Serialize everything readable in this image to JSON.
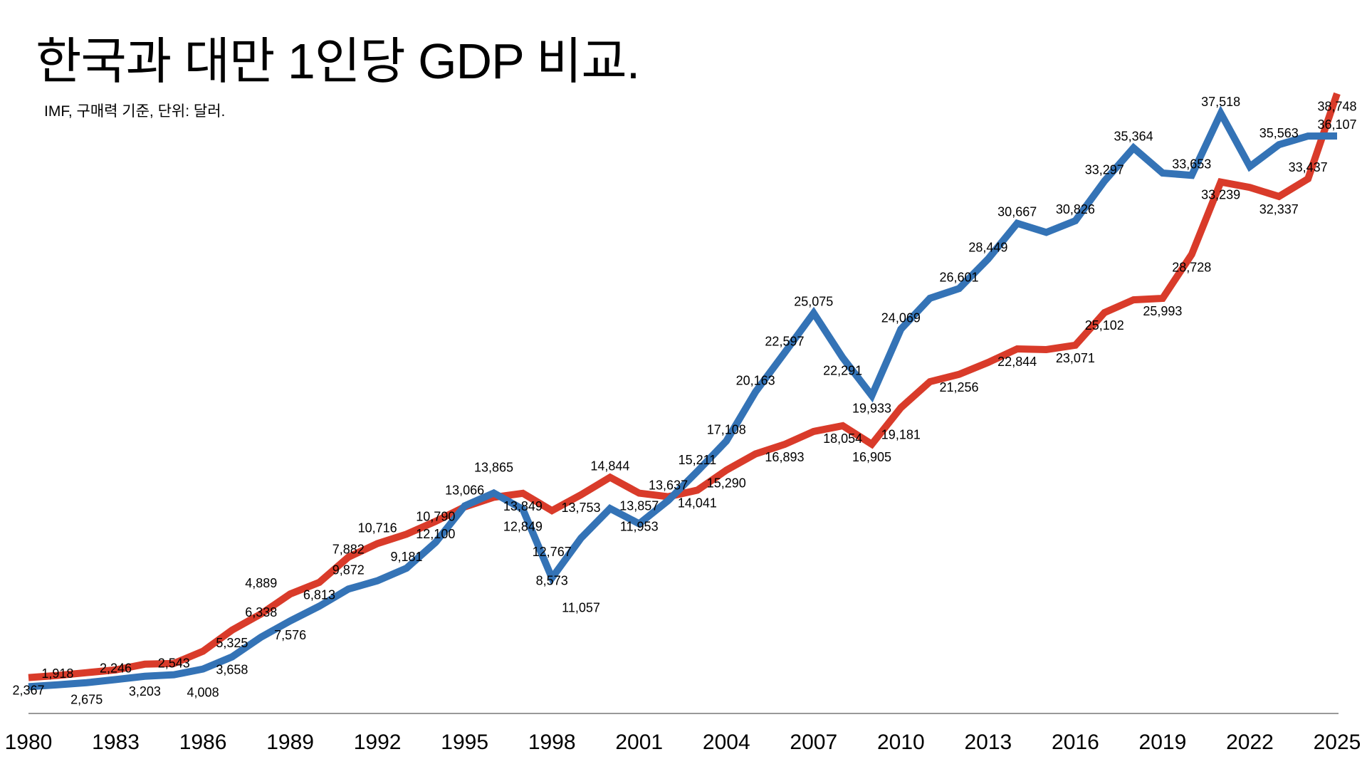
{
  "chart_data": {
    "type": "line",
    "title": "한국과 대만 1인당 GDP 비교.",
    "subtitle": "IMF, 구매력 기준, 단위: 달러.",
    "xlabel": "",
    "ylabel": "",
    "x": [
      1980,
      1981,
      1982,
      1983,
      1984,
      1985,
      1986,
      1987,
      1988,
      1989,
      1990,
      1991,
      1992,
      1993,
      1994,
      1995,
      1996,
      1997,
      1998,
      1999,
      2000,
      2001,
      2002,
      2003,
      2004,
      2005,
      2006,
      2007,
      2008,
      2009,
      2010,
      2011,
      2012,
      2013,
      2014,
      2015,
      2016,
      2017,
      2018,
      2019,
      2020,
      2021,
      2022,
      2023,
      2024,
      2025
    ],
    "x_ticks": [
      1980,
      1983,
      1986,
      1989,
      1992,
      1995,
      1998,
      2001,
      2004,
      2007,
      2010,
      2013,
      2016,
      2019,
      2022,
      2025
    ],
    "ylim": [
      0,
      44000
    ],
    "y_axis_visible": false,
    "grid": false,
    "legend": "none",
    "series": [
      {
        "color": "#D93B2A",
        "values": [
          2367,
          2500,
          2675,
          2850,
          3203,
          3250,
          4008,
          5325,
          6338,
          7576,
          8300,
          9872,
          10716,
          11300,
          12100,
          13000,
          13600,
          13849,
          12767,
          13753,
          14844,
          13857,
          13637,
          14041,
          15290,
          16300,
          16893,
          17700,
          18054,
          16905,
          19181,
          20800,
          21256,
          22000,
          22844,
          22800,
          23071,
          25102,
          25900,
          25993,
          28728,
          33239,
          32900,
          32337,
          33437,
          38748
        ]
      },
      {
        "color": "#3473B6",
        "values": [
          1800,
          1918,
          2050,
          2246,
          2450,
          2543,
          2900,
          3658,
          4889,
          5900,
          6813,
          7882,
          8400,
          9181,
          10790,
          13066,
          13865,
          12849,
          8573,
          11057,
          12900,
          11953,
          13400,
          15211,
          17108,
          20163,
          22597,
          25075,
          22291,
          19933,
          24069,
          26000,
          26601,
          28449,
          30667,
          30100,
          30826,
          33297,
          35364,
          33800,
          33653,
          37518,
          34200,
          35563,
          36100,
          36107
        ]
      }
    ],
    "data_labels": [
      {
        "series": 0,
        "year": 1980,
        "text": "2,367",
        "pos": "below"
      },
      {
        "series": 1,
        "year": 1981,
        "text": "1,918",
        "pos": "above"
      },
      {
        "series": 0,
        "year": 1982,
        "text": "2,675",
        "pos": "below"
      },
      {
        "series": 1,
        "year": 1983,
        "text": "2,246",
        "pos": "above"
      },
      {
        "series": 0,
        "year": 1984,
        "text": "3,203",
        "pos": "below"
      },
      {
        "series": 1,
        "year": 1985,
        "text": "2,543",
        "pos": "above"
      },
      {
        "series": 0,
        "year": 1986,
        "text": "4,008",
        "pos": "below"
      },
      {
        "series": 0,
        "year": 1987,
        "text": "5,325",
        "pos": "below"
      },
      {
        "series": 1,
        "year": 1987,
        "text": "3,658",
        "pos": "below"
      },
      {
        "series": 0,
        "year": 1988,
        "text": "6,338",
        "pos": "below"
      },
      {
        "series": 1,
        "year": 1988,
        "text": "4,889",
        "pos": "above"
      },
      {
        "series": 0,
        "year": 1989,
        "text": "7,576",
        "pos": "below"
      },
      {
        "series": 1,
        "year": 1990,
        "text": "6,813",
        "pos": "above"
      },
      {
        "series": 0,
        "year": 1991,
        "text": "9,872",
        "pos": "below"
      },
      {
        "series": 1,
        "year": 1991,
        "text": "7,882",
        "pos": "above"
      },
      {
        "series": 0,
        "year": 1992,
        "text": "10,716",
        "pos": "below"
      },
      {
        "series": 1,
        "year": 1993,
        "text": "9,181",
        "pos": "above"
      },
      {
        "series": 0,
        "year": 1994,
        "text": "12,100",
        "pos": "below"
      },
      {
        "series": 1,
        "year": 1994,
        "text": "10,790",
        "pos": "above"
      },
      {
        "series": 1,
        "year": 1995,
        "text": "13,066",
        "pos": "below"
      },
      {
        "series": 1,
        "year": 1996,
        "text": "13,865",
        "pos": "above"
      },
      {
        "series": 0,
        "year": 1997,
        "text": "13,849",
        "pos": "below"
      },
      {
        "series": 1,
        "year": 1997,
        "text": "12,849",
        "pos": "above"
      },
      {
        "series": 0,
        "year": 1998,
        "text": "12,767",
        "pos": "below"
      },
      {
        "series": 1,
        "year": 1998,
        "text": "8,573",
        "pos": "above"
      },
      {
        "series": 0,
        "year": 1999,
        "text": "13,753",
        "pos": "below"
      },
      {
        "series": 1,
        "year": 1999,
        "text": "11,057",
        "pos": "below"
      },
      {
        "series": 0,
        "year": 2000,
        "text": "14,844",
        "pos": "above"
      },
      {
        "series": 0,
        "year": 2001,
        "text": "13,857",
        "pos": "below"
      },
      {
        "series": 1,
        "year": 2001,
        "text": "11,953",
        "pos": "above"
      },
      {
        "series": 0,
        "year": 2002,
        "text": "13,637",
        "pos": "above"
      },
      {
        "series": 0,
        "year": 2003,
        "text": "14,041",
        "pos": "below"
      },
      {
        "series": 1,
        "year": 2003,
        "text": "15,211",
        "pos": "above"
      },
      {
        "series": 0,
        "year": 2004,
        "text": "15,290",
        "pos": "below"
      },
      {
        "series": 1,
        "year": 2004,
        "text": "17,108",
        "pos": "above"
      },
      {
        "series": 1,
        "year": 2005,
        "text": "20,163",
        "pos": "above"
      },
      {
        "series": 0,
        "year": 2006,
        "text": "16,893",
        "pos": "below"
      },
      {
        "series": 1,
        "year": 2006,
        "text": "22,597",
        "pos": "above"
      },
      {
        "series": 1,
        "year": 2007,
        "text": "25,075",
        "pos": "above"
      },
      {
        "series": 0,
        "year": 2008,
        "text": "18,054",
        "pos": "below"
      },
      {
        "series": 1,
        "year": 2008,
        "text": "22,291",
        "pos": "below"
      },
      {
        "series": 0,
        "year": 2009,
        "text": "16,905",
        "pos": "below"
      },
      {
        "series": 1,
        "year": 2009,
        "text": "19,933",
        "pos": "below"
      },
      {
        "series": 0,
        "year": 2010,
        "text": "19,181",
        "pos": "below"
      },
      {
        "series": 1,
        "year": 2010,
        "text": "24,069",
        "pos": "above"
      },
      {
        "series": 0,
        "year": 2012,
        "text": "21,256",
        "pos": "below"
      },
      {
        "series": 1,
        "year": 2012,
        "text": "26,601",
        "pos": "above"
      },
      {
        "series": 1,
        "year": 2013,
        "text": "28,449",
        "pos": "above"
      },
      {
        "series": 0,
        "year": 2014,
        "text": "22,844",
        "pos": "below"
      },
      {
        "series": 1,
        "year": 2014,
        "text": "30,667",
        "pos": "above"
      },
      {
        "series": 0,
        "year": 2016,
        "text": "23,071",
        "pos": "below"
      },
      {
        "series": 1,
        "year": 2016,
        "text": "30,826",
        "pos": "above"
      },
      {
        "series": 0,
        "year": 2017,
        "text": "25,102",
        "pos": "below"
      },
      {
        "series": 1,
        "year": 2017,
        "text": "33,297",
        "pos": "above"
      },
      {
        "series": 1,
        "year": 2018,
        "text": "35,364",
        "pos": "above"
      },
      {
        "series": 0,
        "year": 2019,
        "text": "25,993",
        "pos": "below"
      },
      {
        "series": 0,
        "year": 2020,
        "text": "28,728",
        "pos": "below"
      },
      {
        "series": 1,
        "year": 2020,
        "text": "33,653",
        "pos": "above"
      },
      {
        "series": 0,
        "year": 2021,
        "text": "33,239",
        "pos": "below"
      },
      {
        "series": 1,
        "year": 2021,
        "text": "37,518",
        "pos": "above"
      },
      {
        "series": 0,
        "year": 2023,
        "text": "32,337",
        "pos": "below"
      },
      {
        "series": 1,
        "year": 2023,
        "text": "35,563",
        "pos": "above"
      },
      {
        "series": 0,
        "year": 2024,
        "text": "33,437",
        "pos": "above"
      },
      {
        "series": 0,
        "year": 2025,
        "text": "38,748",
        "pos": "below"
      },
      {
        "series": 1,
        "year": 2025,
        "text": "36,107",
        "pos": "above"
      }
    ]
  }
}
